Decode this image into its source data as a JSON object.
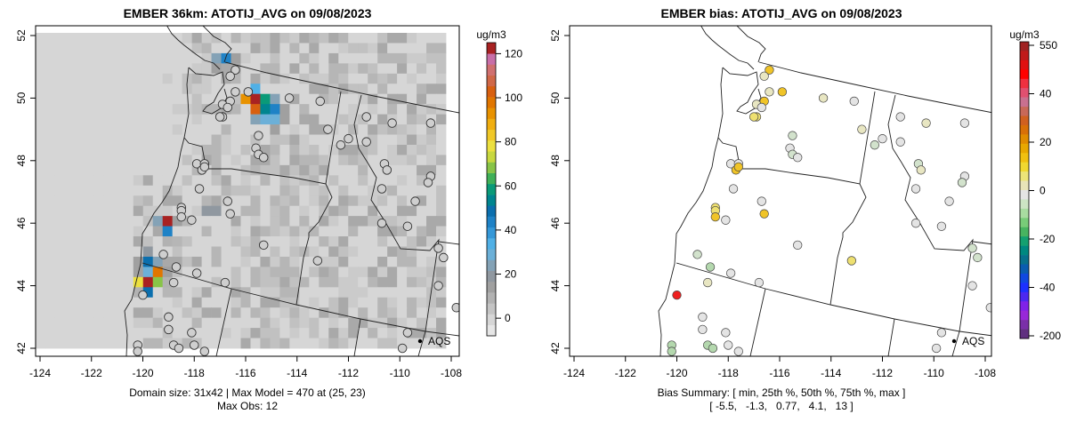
{
  "chart_data": [
    {
      "type": "heatmap",
      "title": "EMBER 36km: ATOTIJ_AVG on 09/08/2023",
      "colorbar": {
        "unit": "ug/m3",
        "ticks": [
          0,
          20,
          40,
          60,
          80,
          100,
          120
        ],
        "range": [
          -8,
          125
        ]
      },
      "xticks": [
        -124,
        -122,
        -120,
        -118,
        -116,
        -114,
        -112,
        -110,
        -108
      ],
      "yticks": [
        42,
        44,
        46,
        48,
        50,
        52
      ],
      "xlim": [
        -124.2,
        -107.7
      ],
      "ylim": [
        41.7,
        52.3
      ],
      "grid": {
        "cols": 42,
        "rows": 31
      },
      "hotspot_cells": [
        {
          "col": 18,
          "row": 2,
          "value": 25
        },
        {
          "col": 19,
          "row": 2,
          "value": 45
        },
        {
          "col": 20,
          "row": 2,
          "value": 15
        },
        {
          "col": 18,
          "row": 3,
          "value": 15
        },
        {
          "col": 22,
          "row": 5,
          "value": 35
        },
        {
          "col": 21,
          "row": 6,
          "value": 95
        },
        {
          "col": 22,
          "row": 6,
          "value": 125
        },
        {
          "col": 23,
          "row": 6,
          "value": 58
        },
        {
          "col": 24,
          "row": 6,
          "value": 25
        },
        {
          "col": 22,
          "row": 7,
          "value": 105
        },
        {
          "col": 23,
          "row": 7,
          "value": 52
        },
        {
          "col": 24,
          "row": 7,
          "value": 42
        },
        {
          "col": 25,
          "row": 7,
          "value": 14
        },
        {
          "col": 22,
          "row": 8,
          "value": 24
        },
        {
          "col": 23,
          "row": 8,
          "value": 27
        },
        {
          "col": 24,
          "row": 8,
          "value": 30
        },
        {
          "col": 25,
          "row": 8,
          "value": 14
        },
        {
          "col": 24,
          "row": 9,
          "value": 15
        },
        {
          "col": 17,
          "row": 17,
          "value": 18
        },
        {
          "col": 18,
          "row": 17,
          "value": 20
        },
        {
          "col": 12,
          "row": 18,
          "value": 22
        },
        {
          "col": 13,
          "row": 18,
          "value": 125
        },
        {
          "col": 14,
          "row": 18,
          "value": 16
        },
        {
          "col": 13,
          "row": 19,
          "value": 45
        },
        {
          "col": 13,
          "row": 20,
          "value": 10
        },
        {
          "col": 11,
          "row": 21,
          "value": 20
        },
        {
          "col": 10,
          "row": 22,
          "value": 15
        },
        {
          "col": 11,
          "row": 22,
          "value": 50
        },
        {
          "col": 12,
          "row": 22,
          "value": 26
        },
        {
          "col": 10,
          "row": 23,
          "value": 15
        },
        {
          "col": 11,
          "row": 23,
          "value": 27
        },
        {
          "col": 12,
          "row": 23,
          "value": 97
        },
        {
          "col": 13,
          "row": 23,
          "value": 15
        },
        {
          "col": 10,
          "row": 24,
          "value": 76
        },
        {
          "col": 11,
          "row": 24,
          "value": 125
        },
        {
          "col": 12,
          "row": 24,
          "value": 68
        },
        {
          "col": 13,
          "row": 24,
          "value": 9
        },
        {
          "col": 10,
          "row": 25,
          "value": 8
        },
        {
          "col": 11,
          "row": 25,
          "value": 50
        }
      ],
      "summary": "Domain size: 31x42 | Max Model = 470 at (25, 23)",
      "summary2": "Max Obs: 12",
      "legend": "AQS"
    },
    {
      "type": "scatter",
      "title": "EMBER bias: ATOTIJ_AVG on 09/08/2023",
      "colorbar": {
        "unit": "ug/m3",
        "ticks": [
          "550",
          "40",
          "20",
          "0",
          "-20",
          "-40",
          "-200"
        ]
      },
      "xticks": [
        -124,
        -122,
        -120,
        -118,
        -116,
        -114,
        -112,
        -110,
        -108
      ],
      "yticks": [
        42,
        44,
        46,
        48,
        50,
        52
      ],
      "summary": "Bias Summary: [ min, 25th %, 50th %, 75th %, max ]",
      "summary2": "[ -5.5,   -1.3,   0.77,   4.1,   13 ]",
      "legend": "AQS"
    }
  ],
  "stations": [
    [
      -116.4,
      50.9,
      6
    ],
    [
      -116.6,
      50.7,
      1.5
    ],
    [
      -115.9,
      50.2,
      6
    ],
    [
      -116.4,
      50.2,
      1.5
    ],
    [
      -116.6,
      49.9,
      6
    ],
    [
      -116.9,
      49.8,
      1.5
    ],
    [
      -116.7,
      49.7,
      0
    ],
    [
      -116.9,
      49.4,
      4
    ],
    [
      -117.0,
      49.4,
      4
    ],
    [
      -114.3,
      50.0,
      1.5
    ],
    [
      -113.1,
      49.9,
      0
    ],
    [
      -115.5,
      48.8,
      -1
    ],
    [
      -115.6,
      48.4,
      0
    ],
    [
      -115.5,
      48.2,
      -1
    ],
    [
      -115.3,
      48.1,
      0
    ],
    [
      -112.8,
      49.0,
      1.5
    ],
    [
      -112.3,
      48.5,
      -1
    ],
    [
      -112.0,
      48.7,
      0
    ],
    [
      -111.3,
      49.4,
      0
    ],
    [
      -110.3,
      49.2,
      1.5
    ],
    [
      -108.8,
      49.2,
      0
    ],
    [
      -111.3,
      48.6,
      0
    ],
    [
      -110.6,
      47.9,
      -1
    ],
    [
      -110.5,
      47.7,
      1.5
    ],
    [
      -108.8,
      47.5,
      0
    ],
    [
      -108.9,
      47.3,
      -1
    ],
    [
      -110.7,
      47.1,
      0
    ],
    [
      -109.4,
      46.7,
      0
    ],
    [
      -110.7,
      46.0,
      0
    ],
    [
      -109.7,
      45.9,
      0
    ],
    [
      -117.9,
      47.9,
      0
    ],
    [
      -117.6,
      47.9,
      0
    ],
    [
      -117.7,
      47.7,
      6
    ],
    [
      -117.6,
      47.8,
      6
    ],
    [
      -117.8,
      47.1,
      0
    ],
    [
      -116.7,
      46.7,
      0
    ],
    [
      -116.6,
      46.3,
      6
    ],
    [
      -118.1,
      46.1,
      0
    ],
    [
      -118.5,
      46.5,
      4
    ],
    [
      -118.5,
      46.4,
      4
    ],
    [
      -118.5,
      46.2,
      6
    ],
    [
      -115.3,
      45.3,
      0
    ],
    [
      -113.2,
      44.8,
      4
    ],
    [
      -119.2,
      45.0,
      -1
    ],
    [
      -118.7,
      44.6,
      -3
    ],
    [
      -117.9,
      44.4,
      0
    ],
    [
      -118.8,
      44.1,
      1.5
    ],
    [
      -116.8,
      44.1,
      0
    ],
    [
      -120.0,
      43.7,
      13
    ],
    [
      -119.0,
      43.0,
      0
    ],
    [
      -119.0,
      42.6,
      0
    ],
    [
      -118.1,
      42.5,
      0
    ],
    [
      -120.2,
      42.1,
      -3
    ],
    [
      -120.2,
      41.9,
      -3
    ],
    [
      -118.8,
      42.1,
      -3
    ],
    [
      -118.6,
      42.0,
      -3
    ],
    [
      -118.0,
      42.1,
      0
    ],
    [
      -117.6,
      41.9,
      0
    ],
    [
      -108.5,
      45.2,
      -1
    ],
    [
      -108.3,
      44.9,
      -1
    ],
    [
      -108.5,
      44.0,
      0
    ],
    [
      -107.8,
      43.3,
      0
    ],
    [
      -109.7,
      42.5,
      0
    ],
    [
      -109.9,
      42.0,
      0
    ]
  ]
}
